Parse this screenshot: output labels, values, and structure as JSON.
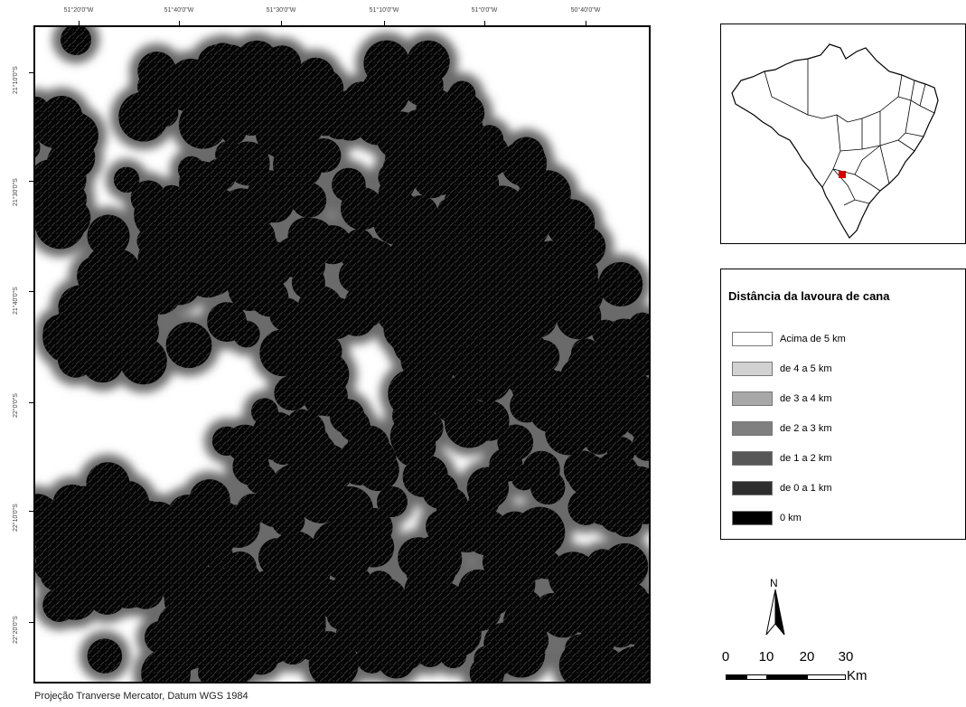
{
  "main_map": {
    "top_ticks": [
      "51°20'0\"W",
      "51°40'0\"W",
      "51°30'0\"W",
      "51°10'0\"W",
      "51°0'0\"W",
      "50°40'0\"W"
    ],
    "left_ticks": [
      "21°10'0\"S",
      "21°30'0\"S",
      "21°40'0\"S",
      "22°0'0\"S",
      "22°10'0\"S",
      "22°20'0\"S"
    ],
    "projection": "Projeção Tranverse Mercator, Datum WGS 1984"
  },
  "inset_map": {
    "highlight_color": "#d40000"
  },
  "legend": {
    "title": "Distância da lavoura de cana",
    "items": [
      {
        "label": "Acima de 5 km",
        "color": "#ffffff"
      },
      {
        "label": "de 4 a 5 km",
        "color": "#d2d2d2"
      },
      {
        "label": "de 3 a 4 km",
        "color": "#a8a8a8"
      },
      {
        "label": "de 2 a 3 km",
        "color": "#7f7f7f"
      },
      {
        "label": "de 1 a 2 km",
        "color": "#575757"
      },
      {
        "label": "de 0 a 1 km",
        "color": "#2e2e2e"
      },
      {
        "label": "0 km",
        "color": "#000000"
      }
    ]
  },
  "north_arrow": {
    "label": "N"
  },
  "scale_bar": {
    "labels": [
      "0",
      "10",
      "20",
      "30"
    ],
    "unit": "Km"
  }
}
